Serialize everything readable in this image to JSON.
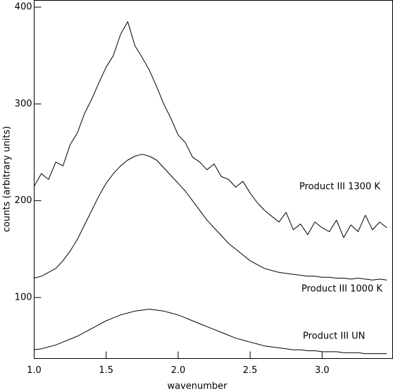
{
  "chart_data": {
    "type": "line",
    "x_label": "wavenumber",
    "y_label": "counts (arbitrary units)",
    "xlim": [
      1.0,
      3.49
    ],
    "ylim": [
      37,
      407
    ],
    "xticks": [
      {
        "value": 1,
        "label": "1.0"
      },
      1.5,
      {
        "value": 2,
        "label": "2.0"
      },
      2.5,
      {
        "value": 3,
        "label": "3.0"
      }
    ],
    "yticks": [
      100,
      200,
      300,
      400
    ],
    "x": [
      1.0,
      1.05,
      1.1,
      1.15,
      1.2,
      1.25,
      1.3,
      1.35,
      1.4,
      1.45,
      1.5,
      1.55,
      1.6,
      1.65,
      1.7,
      1.75,
      1.8,
      1.85,
      1.9,
      1.95,
      2.0,
      2.05,
      2.1,
      2.15,
      2.2,
      2.25,
      2.3,
      2.35,
      2.4,
      2.45,
      2.5,
      2.55,
      2.6,
      2.65,
      2.7,
      2.75,
      2.8,
      2.85,
      2.9,
      2.95,
      3.0,
      3.05,
      3.1,
      3.15,
      3.2,
      3.25,
      3.3,
      3.35,
      3.4,
      3.45
    ],
    "series": [
      {
        "name": "Product III 1300 K",
        "color": "#000000",
        "values": [
          215,
          228,
          222,
          240,
          236,
          258,
          270,
          290,
          305,
          322,
          338,
          350,
          372,
          385,
          360,
          348,
          335,
          318,
          300,
          285,
          268,
          260,
          245,
          240,
          232,
          238,
          225,
          222,
          214,
          220,
          208,
          198,
          190,
          184,
          178,
          188,
          170,
          176,
          165,
          178,
          172,
          168,
          180,
          162,
          175,
          168,
          185,
          170,
          178,
          172
        ]
      },
      {
        "name": "Product III 1000 K",
        "color": "#000000",
        "values": [
          120,
          122,
          126,
          130,
          138,
          148,
          160,
          175,
          190,
          205,
          218,
          228,
          236,
          242,
          246,
          248,
          246,
          242,
          234,
          226,
          218,
          210,
          200,
          190,
          180,
          172,
          164,
          156,
          150,
          144,
          138,
          134,
          130,
          128,
          126,
          125,
          124,
          123,
          122,
          122,
          121,
          121,
          120,
          120,
          119,
          120,
          119,
          118,
          119,
          118
        ]
      },
      {
        "name": "Product III UN",
        "color": "#000000",
        "values": [
          46,
          47,
          49,
          51,
          54,
          57,
          60,
          64,
          68,
          72,
          76,
          79,
          82,
          84,
          86,
          87,
          88,
          87,
          86,
          84,
          82,
          79,
          76,
          73,
          70,
          67,
          64,
          61,
          58,
          56,
          54,
          52,
          50,
          49,
          48,
          47,
          46,
          46,
          45,
          45,
          44,
          44,
          44,
          43,
          43,
          43,
          42,
          42,
          42,
          42
        ]
      }
    ]
  }
}
